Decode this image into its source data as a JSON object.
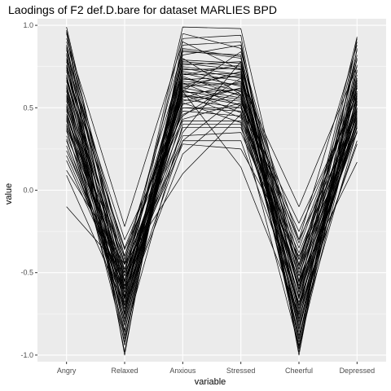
{
  "chart_data": {
    "type": "line",
    "title": "Laodings of F2 def.D.bare for dataset MARLIES BPD",
    "xlabel": "variable",
    "ylabel": "value",
    "categories": [
      "Angry",
      "Relaxed",
      "Anxious",
      "Stressed",
      "Cheerful",
      "Depressed"
    ],
    "ylim": [
      -1.04,
      1.04
    ],
    "y_ticks": [
      1.0,
      0.5,
      0.0,
      -0.5,
      -1.0
    ],
    "y_tick_labels": [
      "1.0",
      "0.5",
      "0.0",
      "-0.5",
      "-1.0"
    ],
    "grid": true,
    "legend": "none",
    "colors": {
      "panel": "#ebebeb",
      "grid_major": "#ffffff",
      "line": "#000000"
    },
    "series": [
      {
        "values": [
          0.99,
          -0.55,
          0.99,
          0.98,
          -0.55,
          0.93
        ]
      },
      {
        "values": [
          0.97,
          -0.6,
          0.95,
          0.86,
          -0.62,
          0.9
        ]
      },
      {
        "values": [
          0.95,
          -0.7,
          0.85,
          0.8,
          -0.7,
          0.85
        ]
      },
      {
        "values": [
          0.92,
          -0.22,
          0.9,
          0.73,
          -0.3,
          0.88
        ]
      },
      {
        "values": [
          0.9,
          -0.4,
          0.78,
          0.75,
          -0.45,
          0.79
        ]
      },
      {
        "values": [
          0.88,
          -0.65,
          0.75,
          0.7,
          -0.6,
          0.82
        ]
      },
      {
        "values": [
          0.85,
          -0.5,
          0.72,
          0.66,
          -0.1,
          0.75
        ]
      },
      {
        "values": [
          0.83,
          -0.75,
          0.68,
          0.6,
          -0.8,
          0.7
        ]
      },
      {
        "values": [
          0.8,
          -0.45,
          0.65,
          0.58,
          -0.48,
          0.68
        ]
      },
      {
        "values": [
          0.78,
          -0.8,
          0.62,
          0.72,
          -0.9,
          0.73
        ]
      },
      {
        "values": [
          0.76,
          -0.55,
          0.6,
          0.55,
          -0.35,
          0.6
        ]
      },
      {
        "values": [
          0.74,
          -0.62,
          0.58,
          0.52,
          -0.58,
          0.65
        ]
      },
      {
        "values": [
          0.72,
          -0.35,
          0.55,
          0.5,
          -0.25,
          0.58
        ]
      },
      {
        "values": [
          0.7,
          -0.7,
          0.52,
          0.62,
          -0.65,
          0.62
        ]
      },
      {
        "values": [
          0.68,
          -0.58,
          0.5,
          0.48,
          -0.52,
          0.55
        ]
      },
      {
        "values": [
          0.66,
          -0.48,
          0.48,
          0.45,
          -0.42,
          0.52
        ]
      },
      {
        "values": [
          0.64,
          -0.66,
          0.45,
          0.68,
          -0.72,
          0.57
        ]
      },
      {
        "values": [
          0.62,
          -0.52,
          0.42,
          0.42,
          -0.38,
          0.48
        ]
      },
      {
        "values": [
          0.6,
          -0.88,
          0.4,
          0.4,
          -0.95,
          0.5
        ]
      },
      {
        "values": [
          0.58,
          -0.62,
          0.38,
          0.38,
          -0.55,
          0.45
        ]
      },
      {
        "values": [
          0.56,
          -0.45,
          0.35,
          0.78,
          -0.62,
          0.42
        ]
      },
      {
        "values": [
          0.54,
          -0.6,
          0.33,
          0.35,
          -0.45,
          0.4
        ]
      },
      {
        "values": [
          0.52,
          -0.72,
          0.3,
          0.3,
          -0.68,
          0.38
        ]
      },
      {
        "values": [
          0.5,
          -0.55,
          0.28,
          0.25,
          -0.4,
          0.35
        ]
      },
      {
        "values": [
          0.48,
          -0.68,
          0.82,
          0.88,
          -0.78,
          0.44
        ]
      },
      {
        "values": [
          0.46,
          -0.5,
          0.7,
          0.76,
          -0.5,
          0.6
        ]
      },
      {
        "values": [
          0.44,
          -0.78,
          0.66,
          0.64,
          -0.82,
          0.54
        ]
      },
      {
        "values": [
          0.42,
          -0.58,
          0.64,
          0.7,
          -0.6,
          0.47
        ]
      },
      {
        "values": [
          0.4,
          -0.65,
          0.8,
          0.58,
          -0.7,
          0.52
        ]
      },
      {
        "values": [
          0.38,
          -0.52,
          0.56,
          0.66,
          -0.48,
          0.5
        ]
      },
      {
        "values": [
          0.36,
          -0.7,
          0.62,
          0.56,
          -0.88,
          0.36
        ]
      },
      {
        "values": [
          0.33,
          -0.48,
          0.74,
          0.68,
          -0.52,
          0.46
        ]
      },
      {
        "values": [
          0.3,
          -0.62,
          0.5,
          0.5,
          -0.58,
          0.42
        ]
      },
      {
        "values": [
          0.24,
          -0.55,
          0.54,
          0.62,
          -0.65,
          0.38
        ]
      },
      {
        "values": [
          0.18,
          -0.6,
          0.6,
          0.14,
          -0.75,
          0.3
        ]
      },
      {
        "values": [
          0.12,
          -0.45,
          0.1,
          0.46,
          -0.55,
          0.17
        ]
      },
      {
        "values": [
          0.09,
          -0.7,
          0.22,
          0.52,
          -0.6,
          0.35
        ]
      },
      {
        "values": [
          -0.1,
          -0.5,
          0.3,
          0.58,
          -0.72,
          0.28
        ]
      },
      {
        "values": [
          0.96,
          -1.0,
          0.92,
          0.94,
          -1.0,
          0.86
        ]
      },
      {
        "values": [
          0.87,
          -0.94,
          0.88,
          0.9,
          -0.96,
          0.92
        ]
      },
      {
        "values": [
          0.82,
          -0.98,
          0.84,
          0.82,
          -0.98,
          0.8
        ]
      },
      {
        "values": [
          0.75,
          -0.9,
          0.76,
          0.78,
          -0.92,
          0.76
        ]
      },
      {
        "values": [
          0.69,
          -0.85,
          0.73,
          0.74,
          -0.86,
          0.64
        ]
      },
      {
        "values": [
          0.63,
          -0.82,
          0.7,
          0.71,
          -0.84,
          0.58
        ]
      },
      {
        "values": [
          0.57,
          -0.76,
          0.67,
          0.69,
          -0.76,
          0.56
        ]
      },
      {
        "values": [
          0.51,
          -0.64,
          0.63,
          0.65,
          -0.66,
          0.53
        ]
      },
      {
        "values": [
          0.45,
          -0.56,
          0.59,
          0.61,
          -0.56,
          0.49
        ]
      },
      {
        "values": [
          0.39,
          -0.4,
          0.57,
          0.54,
          -0.3,
          0.44
        ]
      },
      {
        "values": [
          0.86,
          -0.42,
          0.6,
          0.84,
          -0.42,
          0.66
        ]
      },
      {
        "values": [
          0.79,
          -0.3,
          0.46,
          0.6,
          -0.32,
          0.62
        ]
      },
      {
        "values": [
          0.73,
          -0.36,
          0.43,
          0.53,
          -0.2,
          0.56
        ]
      },
      {
        "values": [
          0.67,
          -0.44,
          0.86,
          0.81,
          -0.46,
          0.72
        ]
      },
      {
        "values": [
          0.61,
          -0.74,
          0.79,
          0.77,
          -0.74,
          0.67
        ]
      },
      {
        "values": [
          0.55,
          -0.82,
          0.77,
          0.73,
          -0.8,
          0.63
        ]
      },
      {
        "values": [
          0.49,
          -0.92,
          0.71,
          0.63,
          -0.94,
          0.59
        ]
      },
      {
        "values": [
          0.43,
          -0.86,
          0.69,
          0.57,
          -0.9,
          0.54
        ]
      },
      {
        "values": [
          0.37,
          -0.78,
          0.65,
          0.51,
          -0.84,
          0.48
        ]
      },
      {
        "values": [
          0.31,
          -0.72,
          0.61,
          0.47,
          -0.78,
          0.43
        ]
      },
      {
        "values": [
          0.27,
          -0.66,
          0.58,
          0.44,
          -0.7,
          0.41
        ]
      },
      {
        "values": [
          0.21,
          -0.58,
          0.53,
          0.41,
          -0.64,
          0.39
        ]
      }
    ]
  }
}
